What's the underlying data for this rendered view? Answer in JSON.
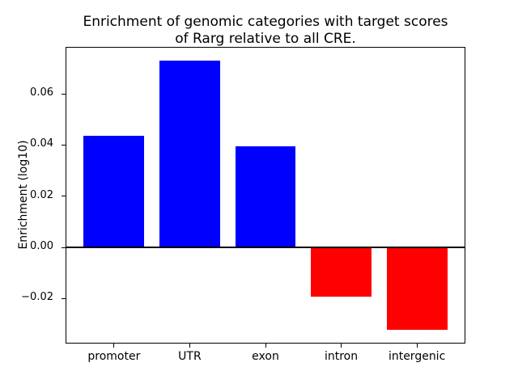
{
  "chart_data": {
    "type": "bar",
    "title": "Enrichment of genomic categories with target scores\nof Rarg relative to all CRE.",
    "title_lines": [
      "Enrichment of genomic categories with target scores",
      "of Rarg relative to all CRE."
    ],
    "ylabel": "Enrichment (log10)",
    "xlabel": "",
    "categories": [
      "promoter",
      "UTR",
      "exon",
      "intron",
      "intergenic"
    ],
    "values": [
      0.0435,
      0.0731,
      0.0394,
      -0.0192,
      -0.0323
    ],
    "bar_colors": [
      "#0000ff",
      "#0000ff",
      "#0000ff",
      "#ff0000",
      "#ff0000"
    ],
    "positive_color": "#0000ff",
    "negative_color": "#ff0000",
    "bar_width": 0.8,
    "y_ticks": [
      0.06,
      0.04,
      0.02,
      0,
      -0.02
    ],
    "y_tick_labels": [
      "0.06",
      "0.04",
      "0.02",
      "0.00",
      "−0.02"
    ],
    "ylim": [
      -0.0376,
      0.0784
    ],
    "xlim": [
      -0.64,
      4.64
    ],
    "zero_line": {
      "y": 0,
      "color": "#000000",
      "thickness": 2.5
    },
    "grid": false,
    "legend": false,
    "background": "#ffffff",
    "axis_color": "#000000"
  }
}
